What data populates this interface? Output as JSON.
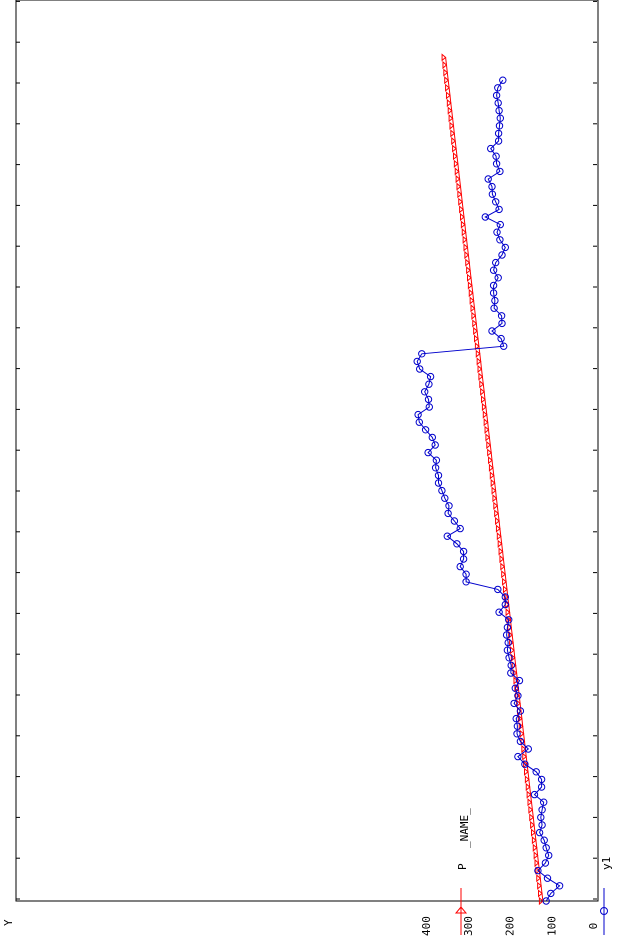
{
  "chart_data": {
    "type": "line",
    "orientation": "rotated-90",
    "ylabel": "Y",
    "ylim": [
      0,
      400
    ],
    "yticks": [
      0,
      100,
      200,
      300,
      400
    ],
    "ytick_labels": [
      "0",
      "100",
      "200",
      "300",
      "400"
    ],
    "xlim": [
      0,
      150
    ],
    "xtick_count": 15,
    "legend": {
      "title": "_NAME_",
      "placement": "bottom",
      "entries": [
        "P",
        "y1"
      ]
    },
    "colors": {
      "P": "#ff0000",
      "y1": "#0000cc"
    },
    "markers": {
      "P": "triangle",
      "y1": "circle"
    },
    "series": [
      {
        "name": "y1",
        "x": [
          1,
          2,
          3,
          4,
          5,
          6,
          7,
          8,
          9,
          10,
          11,
          12,
          13,
          14,
          15,
          16,
          17,
          18,
          19,
          20,
          21,
          22,
          23,
          24,
          25,
          26,
          27,
          28,
          29,
          30,
          31,
          32,
          33,
          34,
          35,
          36,
          37,
          38,
          39,
          40,
          41,
          42,
          43,
          44,
          45,
          46,
          47,
          48,
          49,
          50,
          51,
          52,
          53,
          54,
          55,
          56,
          57,
          58,
          59,
          60,
          61,
          62,
          63,
          64,
          65,
          66,
          67,
          68,
          69,
          70,
          71,
          72,
          73,
          74,
          75,
          76,
          77,
          78,
          79,
          80,
          81,
          82,
          83,
          84,
          85,
          86,
          87,
          88,
          89,
          90,
          91,
          92,
          93,
          94,
          95,
          96,
          97,
          98,
          99,
          100,
          101,
          102,
          103,
          104,
          105,
          106,
          107,
          108,
          109
        ],
        "y": [
          112,
          101,
          80,
          109,
          132,
          114,
          106,
          112,
          117,
          128,
          122,
          125,
          122,
          118,
          140,
          123,
          123,
          136,
          163,
          180,
          155,
          174,
          182,
          181,
          184,
          174,
          189,
          180,
          186,
          176,
          197,
          196,
          201,
          205,
          203,
          207,
          205,
          202,
          225,
          210,
          210,
          228,
          304,
          304,
          318,
          310,
          310,
          326,
          349,
          318,
          332,
          347,
          345,
          355,
          362,
          370,
          370,
          377,
          375,
          395,
          378,
          385,
          401,
          416,
          419,
          392,
          394,
          403,
          393,
          389,
          415,
          421,
          410,
          214,
          220,
          242,
          218,
          219,
          237,
          235,
          238,
          238,
          227,
          238,
          233,
          218,
          210,
          223,
          230,
          222,
          258,
          225,
          233,
          241,
          242,
          251,
          223,
          231,
          232,
          245,
          226,
          226,
          224,
          222,
          225,
          227,
          231,
          228,
          216
        ],
        "mapping": "ignore"
      }
    ]
  }
}
